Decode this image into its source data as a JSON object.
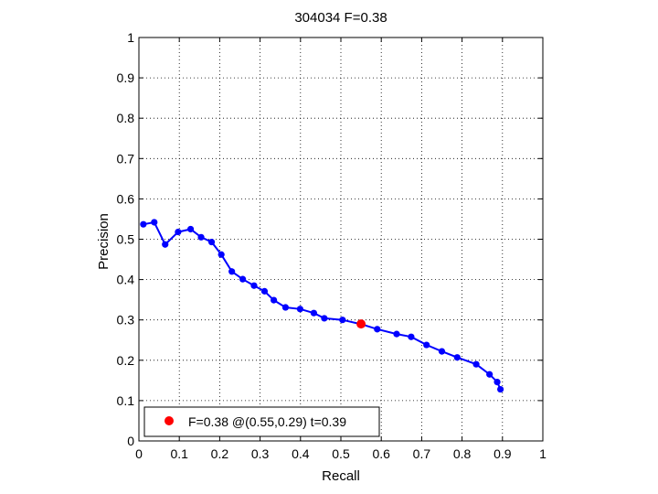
{
  "chart_data": {
    "type": "line",
    "title": "304034 F=0.38",
    "xlabel": "Recall",
    "ylabel": "Precision",
    "xlim": [
      0,
      1
    ],
    "ylim": [
      0,
      1
    ],
    "xticks": [
      0,
      0.1,
      0.2,
      0.3,
      0.4,
      0.5,
      0.6,
      0.7,
      0.8,
      0.9,
      1
    ],
    "yticks": [
      0,
      0.1,
      0.2,
      0.3,
      0.4,
      0.5,
      0.6,
      0.7,
      0.8,
      0.9,
      1
    ],
    "xtick_labels": [
      "0",
      "0.1",
      "0.2",
      "0.3",
      "0.4",
      "0.5",
      "0.6",
      "0.7",
      "0.8",
      "0.9",
      "1"
    ],
    "ytick_labels": [
      "0",
      "0.1",
      "0.2",
      "0.3",
      "0.4",
      "0.5",
      "0.6",
      "0.7",
      "0.8",
      "0.9",
      "1"
    ],
    "grid": true,
    "legend_position": "bottom-left",
    "series": [
      {
        "color": "#0000ff",
        "x": [
          0.011,
          0.038,
          0.065,
          0.097,
          0.128,
          0.154,
          0.18,
          0.204,
          0.23,
          0.257,
          0.285,
          0.311,
          0.334,
          0.363,
          0.399,
          0.433,
          0.459,
          0.504,
          0.552,
          0.59,
          0.638,
          0.674,
          0.712,
          0.75,
          0.788,
          0.835,
          0.868,
          0.887,
          0.895
        ],
        "y": [
          0.537,
          0.542,
          0.487,
          0.518,
          0.525,
          0.505,
          0.493,
          0.462,
          0.42,
          0.401,
          0.385,
          0.371,
          0.349,
          0.331,
          0.327,
          0.317,
          0.304,
          0.3,
          0.289,
          0.277,
          0.265,
          0.258,
          0.238,
          0.222,
          0.207,
          0.19,
          0.165,
          0.146,
          0.128
        ]
      }
    ],
    "highlight": {
      "label": "F=0.38 @(0.55,0.29) t=0.39",
      "x": 0.55,
      "y": 0.29,
      "color": "#ff0000"
    }
  }
}
